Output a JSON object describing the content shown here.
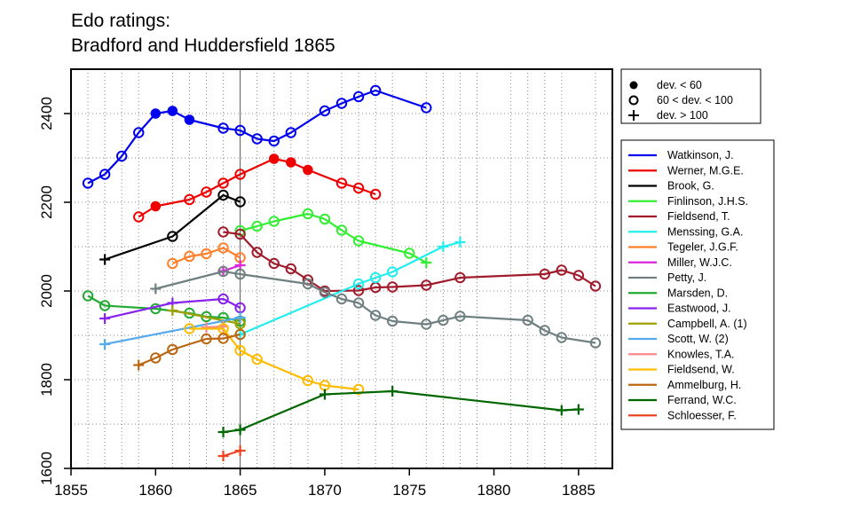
{
  "chart_data": {
    "type": "line",
    "title": "Edo ratings:",
    "subtitle": "Bradford and Huddersfield 1865",
    "xlim": [
      1855,
      1887
    ],
    "ylim": [
      1600,
      2500
    ],
    "x_ticks": [
      1855,
      1860,
      1865,
      1870,
      1875,
      1880,
      1885
    ],
    "y_ticks": [
      1600,
      1800,
      2000,
      2200,
      2400
    ],
    "reference_line_x": 1865,
    "grid": "dotted",
    "marker_legend": [
      {
        "marker": "filled",
        "label": "dev. < 60"
      },
      {
        "marker": "open",
        "label": "60 < dev. < 100"
      },
      {
        "marker": "plus",
        "label": "dev. > 100"
      }
    ],
    "series": [
      {
        "name": "Watkinson, J.",
        "color": "#0000ee",
        "points": [
          [
            1856,
            2243,
            "o"
          ],
          [
            1857,
            2263,
            "o"
          ],
          [
            1858,
            2304,
            "o"
          ],
          [
            1859,
            2357,
            "o"
          ],
          [
            1860,
            2400,
            "f"
          ],
          [
            1861,
            2406,
            "f"
          ],
          [
            1862,
            2386,
            "f"
          ],
          [
            1864,
            2367,
            "o"
          ],
          [
            1865,
            2362,
            "o"
          ],
          [
            1866,
            2343,
            "o"
          ],
          [
            1867,
            2338,
            "o"
          ],
          [
            1868,
            2357,
            "o"
          ],
          [
            1870,
            2406,
            "o"
          ],
          [
            1871,
            2423,
            "o"
          ],
          [
            1872,
            2438,
            "o"
          ],
          [
            1873,
            2452,
            "o"
          ],
          [
            1876,
            2413,
            "o"
          ]
        ]
      },
      {
        "name": "Werner, M.G.E.",
        "color": "#ee0000",
        "points": [
          [
            1859,
            2167,
            "o"
          ],
          [
            1860,
            2191,
            "f"
          ],
          [
            1862,
            2206,
            "o"
          ],
          [
            1863,
            2223,
            "o"
          ],
          [
            1864,
            2243,
            "o"
          ],
          [
            1865,
            2263,
            "o"
          ],
          [
            1867,
            2298,
            "f"
          ],
          [
            1868,
            2290,
            "f"
          ],
          [
            1869,
            2273,
            "f"
          ],
          [
            1871,
            2243,
            "o"
          ],
          [
            1872,
            2232,
            "o"
          ],
          [
            1873,
            2218,
            "o"
          ]
        ]
      },
      {
        "name": "Brook, G.",
        "color": "#000000",
        "points": [
          [
            1857,
            2071,
            "p"
          ],
          [
            1861,
            2123,
            "o"
          ],
          [
            1864,
            2216,
            "o"
          ],
          [
            1865,
            2201,
            "o"
          ]
        ]
      },
      {
        "name": "Finlinson, J.H.S.",
        "color": "#33ee33",
        "points": [
          [
            1865,
            2136,
            "o"
          ],
          [
            1866,
            2146,
            "o"
          ],
          [
            1867,
            2157,
            "o"
          ],
          [
            1869,
            2174,
            "o"
          ],
          [
            1870,
            2162,
            "o"
          ],
          [
            1871,
            2137,
            "o"
          ],
          [
            1872,
            2113,
            "o"
          ],
          [
            1875,
            2085,
            "o"
          ],
          [
            1876,
            2064,
            "p"
          ]
        ]
      },
      {
        "name": "Fieldsend, T.",
        "color": "#a01b2b",
        "points": [
          [
            1864,
            2133,
            "o"
          ],
          [
            1865,
            2128,
            "o"
          ],
          [
            1866,
            2087,
            "o"
          ],
          [
            1867,
            2062,
            "o"
          ],
          [
            1868,
            2050,
            "o"
          ],
          [
            1869,
            2025,
            "o"
          ],
          [
            1870,
            2000,
            "o"
          ],
          [
            1872,
            2001,
            "o"
          ],
          [
            1873,
            2008,
            "o"
          ],
          [
            1874,
            2009,
            "o"
          ],
          [
            1876,
            2013,
            "o"
          ],
          [
            1878,
            2030,
            "o"
          ],
          [
            1883,
            2038,
            "o"
          ],
          [
            1884,
            2047,
            "o"
          ],
          [
            1885,
            2035,
            "o"
          ],
          [
            1886,
            2011,
            "o"
          ]
        ]
      },
      {
        "name": "Menssing, G.A.",
        "color": "#22eeee",
        "points": [
          [
            1865,
            1902,
            "p"
          ],
          [
            1872,
            2016,
            "o"
          ],
          [
            1873,
            2030,
            "o"
          ],
          [
            1874,
            2043,
            "o"
          ],
          [
            1877,
            2100,
            "p"
          ],
          [
            1878,
            2110,
            "p"
          ]
        ]
      },
      {
        "name": "Tegeler, J.G.F.",
        "color": "#ff7f2a",
        "points": [
          [
            1861,
            2062,
            "o"
          ],
          [
            1862,
            2078,
            "o"
          ],
          [
            1863,
            2084,
            "o"
          ],
          [
            1864,
            2097,
            "o"
          ],
          [
            1865,
            2075,
            "o"
          ]
        ]
      },
      {
        "name": "Miller, W.J.C.",
        "color": "#dd22dd",
        "points": [
          [
            1864,
            2045,
            "p"
          ],
          [
            1865,
            2058,
            "p"
          ]
        ]
      },
      {
        "name": "Petty, J.",
        "color": "#708080",
        "points": [
          [
            1860,
            2005,
            "p"
          ],
          [
            1864,
            2044,
            "o"
          ],
          [
            1865,
            2038,
            "o"
          ],
          [
            1869,
            2016,
            "o"
          ],
          [
            1870,
            1997,
            "o"
          ],
          [
            1871,
            1982,
            "o"
          ],
          [
            1872,
            1973,
            "o"
          ],
          [
            1873,
            1945,
            "o"
          ],
          [
            1874,
            1932,
            "o"
          ],
          [
            1876,
            1925,
            "o"
          ],
          [
            1877,
            1934,
            "o"
          ],
          [
            1878,
            1943,
            "o"
          ],
          [
            1882,
            1934,
            "o"
          ],
          [
            1883,
            1911,
            "o"
          ],
          [
            1884,
            1895,
            "o"
          ],
          [
            1886,
            1883,
            "o"
          ]
        ]
      },
      {
        "name": "Marsden, D.",
        "color": "#22aa33",
        "points": [
          [
            1856,
            1989,
            "o"
          ],
          [
            1857,
            1967,
            "o"
          ],
          [
            1860,
            1960,
            "o"
          ],
          [
            1862,
            1950,
            "o"
          ],
          [
            1863,
            1942,
            "o"
          ],
          [
            1864,
            1940,
            "o"
          ],
          [
            1865,
            1932,
            "o"
          ]
        ]
      },
      {
        "name": "Eastwood, J.",
        "color": "#8822ee",
        "points": [
          [
            1857,
            1938,
            "p"
          ],
          [
            1861,
            1973,
            "p"
          ],
          [
            1864,
            1982,
            "o"
          ],
          [
            1865,
            1962,
            "o"
          ]
        ]
      },
      {
        "name": "Campbell, A. (1)",
        "color": "#a0a000",
        "points": [
          [
            1861,
            1956,
            "p"
          ],
          [
            1865,
            1926,
            "o"
          ]
        ]
      },
      {
        "name": "Scott, W. (2)",
        "color": "#55aaee",
        "points": [
          [
            1857,
            1880,
            "p"
          ],
          [
            1865,
            1940,
            "p"
          ]
        ]
      },
      {
        "name": "Knowles, T.A.",
        "color": "#ff8888",
        "points": [
          [
            1863,
            1918,
            "p"
          ],
          [
            1864,
            1920,
            "p"
          ]
        ]
      },
      {
        "name": "Fieldsend, W.",
        "color": "#ffbb00",
        "points": [
          [
            1862,
            1915,
            "o"
          ],
          [
            1864,
            1915,
            "o"
          ],
          [
            1865,
            1866,
            "o"
          ],
          [
            1866,
            1846,
            "o"
          ],
          [
            1869,
            1798,
            "o"
          ],
          [
            1870,
            1787,
            "o"
          ],
          [
            1872,
            1778,
            "o"
          ]
        ]
      },
      {
        "name": "Ammelburg, H.",
        "color": "#bb6611",
        "points": [
          [
            1859,
            1833,
            "p"
          ],
          [
            1860,
            1849,
            "o"
          ],
          [
            1861,
            1868,
            "o"
          ],
          [
            1863,
            1892,
            "o"
          ],
          [
            1864,
            1893,
            "o"
          ],
          [
            1865,
            1902,
            "o"
          ]
        ]
      },
      {
        "name": "Ferrand, W.C.",
        "color": "#006600",
        "points": [
          [
            1864,
            1682,
            "p"
          ],
          [
            1865,
            1687,
            "p"
          ],
          [
            1870,
            1767,
            "p"
          ],
          [
            1874,
            1774,
            "p"
          ],
          [
            1884,
            1731,
            "p"
          ],
          [
            1885,
            1733,
            "p"
          ]
        ]
      },
      {
        "name": "Schloesser, F.",
        "color": "#ee4422",
        "points": [
          [
            1864,
            1628,
            "p"
          ],
          [
            1865,
            1640,
            "p"
          ]
        ]
      }
    ]
  }
}
